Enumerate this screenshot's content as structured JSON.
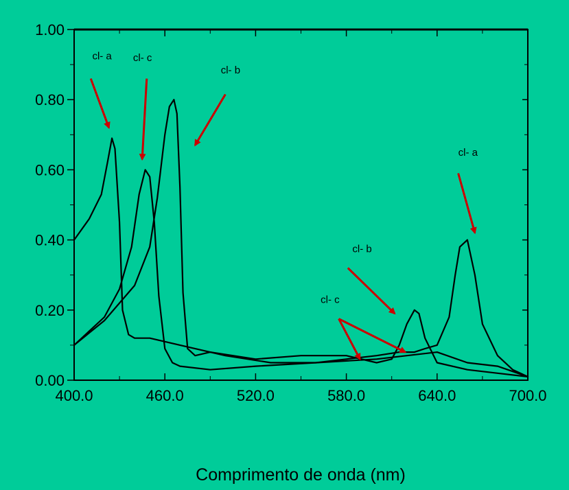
{
  "chart_data": {
    "type": "line",
    "title": "",
    "xlabel": "Comprimento de onda (nm)",
    "ylabel": "",
    "xlim": [
      400,
      700
    ],
    "ylim": [
      0,
      1
    ],
    "x_ticks": [
      "400.0",
      "460.0",
      "520.0",
      "580.0",
      "640.0",
      "700.0"
    ],
    "y_ticks": [
      "0.00",
      "0.20",
      "0.40",
      "0.60",
      "0.80",
      "1.00"
    ],
    "grid": false,
    "line_color": "#000000",
    "arrow_color": "#CC0000",
    "background": "#00CC99",
    "series": [
      {
        "x": [
          400,
          410,
          418,
          422,
          425,
          427,
          430,
          432,
          436,
          440,
          450,
          470,
          500,
          530,
          560,
          580,
          600,
          615,
          625,
          632,
          640,
          648,
          652,
          655,
          660,
          665,
          670,
          680,
          690,
          700
        ],
        "y": [
          0.4,
          0.46,
          0.53,
          0.62,
          0.69,
          0.66,
          0.45,
          0.2,
          0.13,
          0.12,
          0.12,
          0.1,
          0.07,
          0.05,
          0.05,
          0.06,
          0.07,
          0.08,
          0.08,
          0.09,
          0.1,
          0.18,
          0.3,
          0.38,
          0.4,
          0.3,
          0.16,
          0.07,
          0.03,
          0.01
        ]
      },
      {
        "x": [
          400,
          420,
          430,
          438,
          443,
          447,
          450,
          453,
          456,
          460,
          465,
          470,
          490,
          520,
          560,
          600,
          620,
          640,
          660,
          680,
          700
        ],
        "y": [
          0.1,
          0.18,
          0.26,
          0.38,
          0.53,
          0.6,
          0.58,
          0.45,
          0.24,
          0.09,
          0.05,
          0.04,
          0.03,
          0.04,
          0.05,
          0.06,
          0.07,
          0.08,
          0.05,
          0.04,
          0.01
        ]
      },
      {
        "x": [
          400,
          420,
          440,
          450,
          455,
          460,
          463,
          466,
          468,
          470,
          472,
          475,
          480,
          490,
          520,
          550,
          580,
          600,
          610,
          615,
          620,
          625,
          628,
          632,
          640,
          660,
          680,
          700
        ],
        "y": [
          0.1,
          0.17,
          0.27,
          0.38,
          0.52,
          0.7,
          0.78,
          0.8,
          0.76,
          0.55,
          0.25,
          0.09,
          0.07,
          0.08,
          0.06,
          0.07,
          0.07,
          0.05,
          0.06,
          0.1,
          0.16,
          0.2,
          0.19,
          0.12,
          0.05,
          0.03,
          0.02,
          0.01
        ]
      }
    ],
    "annotations": [
      {
        "text": "cl- a",
        "x": 412,
        "y": 0.915,
        "arrow_from": [
          411,
          0.86
        ],
        "arrow_to": [
          423,
          0.72
        ]
      },
      {
        "text": "cl- c",
        "x": 439,
        "y": 0.91,
        "arrow_from": [
          448,
          0.86
        ],
        "arrow_to": [
          445,
          0.63
        ]
      },
      {
        "text": "cl- b",
        "x": 497,
        "y": 0.875,
        "arrow_from": [
          500,
          0.815
        ],
        "arrow_to": [
          480,
          0.67
        ]
      },
      {
        "text": "cl- a",
        "x": 654,
        "y": 0.64,
        "arrow_from": [
          654,
          0.59
        ],
        "arrow_to": [
          665,
          0.42
        ]
      },
      {
        "text": "cl- b",
        "x": 584,
        "y": 0.365,
        "arrow_from": [
          581,
          0.32
        ],
        "arrow_to": [
          612,
          0.19
        ]
      },
      {
        "text": "cl- c",
        "x": 563,
        "y": 0.22,
        "arrow_from": [
          575,
          0.175
        ],
        "arrow_to": [
          589,
          0.06
        ]
      },
      {
        "text": "",
        "x": 575,
        "y": 0.175,
        "arrow_from": [
          575,
          0.175
        ],
        "arrow_to": [
          619,
          0.08
        ]
      }
    ]
  }
}
